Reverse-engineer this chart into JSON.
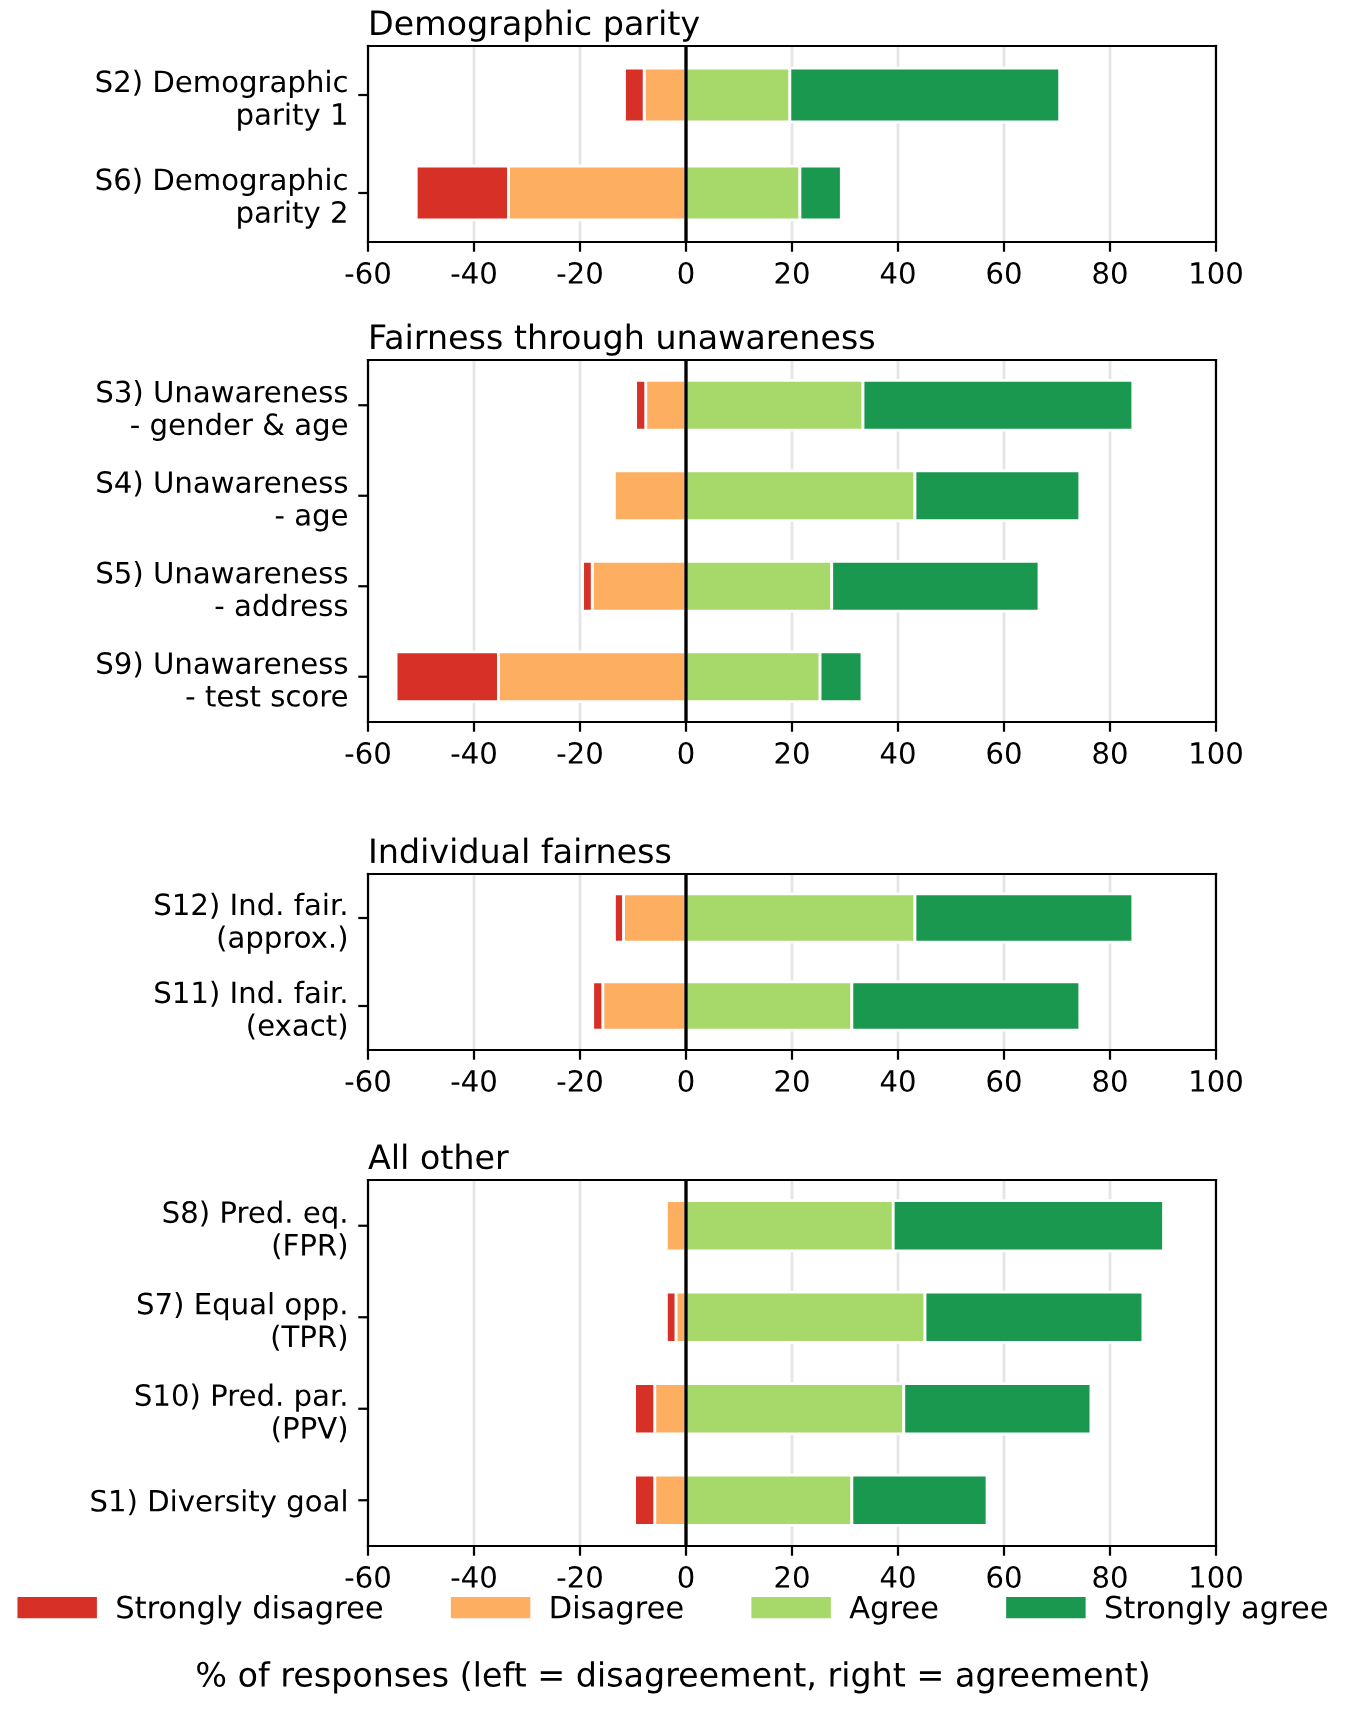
{
  "chart_data": [
    {
      "type": "bar",
      "orientation": "horizontal",
      "stacked": true,
      "title": "Demographic parity",
      "categories": [
        "S2) Demographic\nparity 1",
        "S6) Demographic\nparity 2"
      ],
      "series": [
        {
          "name": "Disagree",
          "color": "#fdae61",
          "values": [
            -7.9,
            -33.5
          ]
        },
        {
          "name": "Strongly disagree",
          "color": "#d73027",
          "values": [
            -3.7,
            -17.4
          ]
        },
        {
          "name": "Agree",
          "color": "#a6d96a",
          "values": [
            19.6,
            21.5
          ]
        },
        {
          "name": "Strongly agree",
          "color": "#1a9850",
          "values": [
            50.9,
            7.8
          ]
        }
      ],
      "xlim": [
        -60,
        100
      ],
      "xticks": [
        -60,
        -40,
        -20,
        0,
        20,
        40,
        60,
        80,
        100
      ],
      "grid": "x",
      "ref_lines": [
        {
          "axis": "x",
          "value": 0,
          "color": "#000000"
        }
      ],
      "legend": "bottom"
    },
    {
      "type": "bar",
      "orientation": "horizontal",
      "stacked": true,
      "title": "Fairness through unawareness",
      "categories": [
        "S3) Unawareness\n- gender & age",
        "S4) Unawareness\n- age",
        "S5) Unawareness\n- address",
        "S9) Unawareness\n- test score"
      ],
      "series": [
        {
          "name": "Disagree",
          "color": "#fdae61",
          "values": [
            -7.6,
            -13.5,
            -17.7,
            -35.4
          ]
        },
        {
          "name": "Strongly disagree",
          "color": "#d73027",
          "values": [
            -1.9,
            null,
            -1.8,
            -19.3
          ]
        },
        {
          "name": "Agree",
          "color": "#a6d96a",
          "values": [
            33.4,
            43.2,
            27.5,
            25.3
          ]
        },
        {
          "name": "Strongly agree",
          "color": "#1a9850",
          "values": [
            50.9,
            31.1,
            39.1,
            7.9
          ]
        }
      ],
      "xlim": [
        -60,
        100
      ],
      "xticks": [
        -60,
        -40,
        -20,
        0,
        20,
        40,
        60,
        80,
        100
      ],
      "grid": "x",
      "ref_lines": [
        {
          "axis": "x",
          "value": 0,
          "color": "#000000"
        }
      ],
      "legend": "bottom"
    },
    {
      "type": "bar",
      "orientation": "horizontal",
      "stacked": true,
      "title": "Individual fairness",
      "categories": [
        "S12) Ind. fair.\n(approx.)",
        "S11) Ind. fair.\n(exact)"
      ],
      "series": [
        {
          "name": "Disagree",
          "color": "#fdae61",
          "values": [
            -11.8,
            -15.7
          ]
        },
        {
          "name": "Strongly disagree",
          "color": "#d73027",
          "values": [
            -1.7,
            -1.9
          ]
        },
        {
          "name": "Agree",
          "color": "#a6d96a",
          "values": [
            43.2,
            31.3
          ]
        },
        {
          "name": "Strongly agree",
          "color": "#1a9850",
          "values": [
            41.1,
            43.0
          ]
        }
      ],
      "xlim": [
        -60,
        100
      ],
      "xticks": [
        -60,
        -40,
        -20,
        0,
        20,
        40,
        60,
        80,
        100
      ],
      "grid": "x",
      "ref_lines": [
        {
          "axis": "x",
          "value": 0,
          "color": "#000000"
        }
      ],
      "legend": "bottom"
    },
    {
      "type": "bar",
      "orientation": "horizontal",
      "stacked": true,
      "title": "All other",
      "categories": [
        "S8) Pred. eq.\n(FPR)",
        "S7) Equal opp.\n(TPR)",
        "S10) Pred. par.\n(PPV)",
        "S1) Diversity goal"
      ],
      "series": [
        {
          "name": "Disagree",
          "color": "#fdae61",
          "values": [
            -3.7,
            -1.9,
            -5.9,
            -5.9
          ]
        },
        {
          "name": "Strongly disagree",
          "color": "#d73027",
          "values": [
            null,
            -1.8,
            -3.8,
            -3.8
          ]
        },
        {
          "name": "Agree",
          "color": "#a6d96a",
          "values": [
            39.1,
            45.1,
            41.1,
            31.3
          ]
        },
        {
          "name": "Strongly agree",
          "color": "#1a9850",
          "values": [
            51.0,
            41.1,
            35.3,
            25.5
          ]
        }
      ],
      "xlim": [
        -60,
        100
      ],
      "xticks": [
        -60,
        -40,
        -20,
        0,
        20,
        40,
        60,
        80,
        100
      ],
      "grid": "x",
      "ref_lines": [
        {
          "axis": "x",
          "value": 0,
          "color": "#000000"
        }
      ],
      "legend": "bottom",
      "xlabel": "% of responses (left = disagreement, right = agreement)"
    }
  ]
}
